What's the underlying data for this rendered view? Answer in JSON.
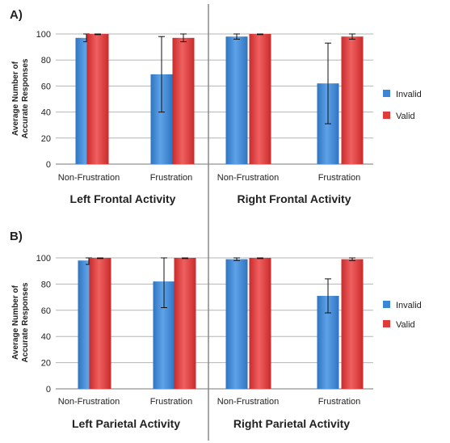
{
  "colors": {
    "invalid": "#3b86d6",
    "invalid_light": "#5ea3e8",
    "valid": "#e03b3b",
    "valid_light": "#f06060",
    "grid": "#b5b5b5",
    "divider": "#888888"
  },
  "shared": {
    "ylabel_line1": "Average Number of",
    "ylabel_line2": "Accurate Responses",
    "legend_invalid": "Invalid",
    "legend_valid": "Valid",
    "category_left_1": "Non-Frustration",
    "category_left_2": "Frustration",
    "category_right_1": "Non-Frustration",
    "category_right_2": "Frustration"
  },
  "chart_data": [
    {
      "type": "bar",
      "panel_label": "A)",
      "ylim": [
        0,
        100
      ],
      "yticks": [
        0,
        20,
        40,
        60,
        80,
        100
      ],
      "grid": true,
      "legend_position": "right",
      "groups": [
        {
          "title": "Left Frontal Activity",
          "categories": [
            "Non-Frustration",
            "Frustration"
          ],
          "series": [
            {
              "name": "Invalid",
              "values": [
                97,
                69
              ],
              "errors": [
                3,
                29
              ]
            },
            {
              "name": "Valid",
              "values": [
                100,
                97
              ],
              "errors": [
                0.5,
                3
              ]
            }
          ]
        },
        {
          "title": "Right Frontal Activity",
          "categories": [
            "Non-Frustration",
            "Frustration"
          ],
          "series": [
            {
              "name": "Invalid",
              "values": [
                98,
                62
              ],
              "errors": [
                2,
                31
              ]
            },
            {
              "name": "Valid",
              "values": [
                100,
                98
              ],
              "errors": [
                0.5,
                2
              ]
            }
          ]
        }
      ]
    },
    {
      "type": "bar",
      "panel_label": "B)",
      "ylim": [
        0,
        100
      ],
      "yticks": [
        0,
        20,
        40,
        60,
        80,
        100
      ],
      "grid": true,
      "legend_position": "right",
      "groups": [
        {
          "title": "Left Parietal Activity",
          "categories": [
            "Non-Frustration",
            "Frustration"
          ],
          "series": [
            {
              "name": "Invalid",
              "values": [
                98,
                82
              ],
              "errors": [
                3,
                20
              ]
            },
            {
              "name": "Valid",
              "values": [
                100,
                100
              ],
              "errors": [
                0.5,
                0.5
              ]
            }
          ]
        },
        {
          "title": "Right Parietal Activity",
          "categories": [
            "Non-Frustration",
            "Frustration"
          ],
          "series": [
            {
              "name": "Invalid",
              "values": [
                99,
                71
              ],
              "errors": [
                1,
                13
              ]
            },
            {
              "name": "Valid",
              "values": [
                100,
                99
              ],
              "errors": [
                0.5,
                1
              ]
            }
          ]
        }
      ]
    }
  ]
}
